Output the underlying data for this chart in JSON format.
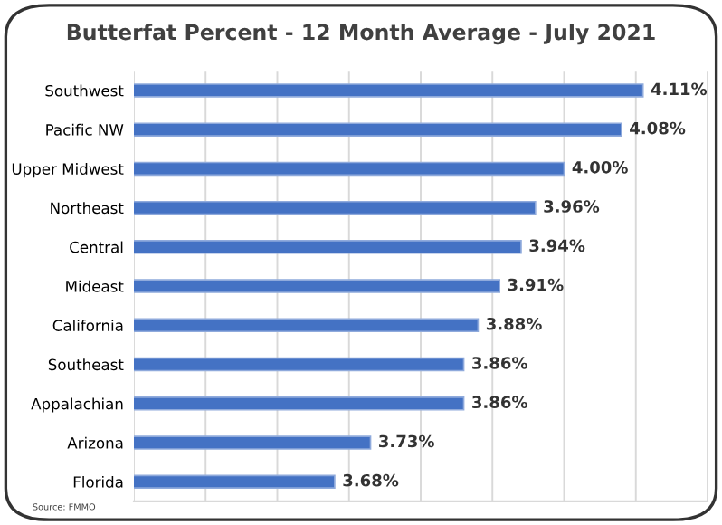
{
  "chart_data": {
    "type": "bar",
    "orientation": "horizontal",
    "title": "Butterfat Percent - 12 Month Average - July 2021",
    "categories": [
      "Southwest",
      "Pacific NW",
      "Upper Midwest",
      "Northeast",
      "Central",
      "Mideast",
      "California",
      "Southeast",
      "Appalachian",
      "Arizona",
      "Florida"
    ],
    "values": [
      4.11,
      4.08,
      4.0,
      3.96,
      3.94,
      3.91,
      3.88,
      3.86,
      3.86,
      3.73,
      3.68
    ],
    "value_labels": [
      "4.11%",
      "4.08%",
      "4.00%",
      "3.96%",
      "3.94%",
      "3.91%",
      "3.88%",
      "3.86%",
      "3.86%",
      "3.73%",
      "3.68%"
    ],
    "color": "#4472c4",
    "xlim": [
      3.4,
      4.2
    ],
    "xticks": [
      {
        "value": 3.4,
        "label": null
      },
      {
        "value": 3.5,
        "label": null
      },
      {
        "value": 3.6,
        "label": null
      },
      {
        "value": 3.7,
        "label": null
      },
      {
        "value": 3.8,
        "label": null
      },
      {
        "value": 3.9,
        "label": null
      },
      {
        "value": 4.0,
        "label": null
      },
      {
        "value": 4.1,
        "label": null
      },
      {
        "value": 4.2,
        "label": null
      }
    ],
    "grid": "x",
    "tick_labels": "y",
    "annotations": [
      "Source: FMMO"
    ]
  }
}
